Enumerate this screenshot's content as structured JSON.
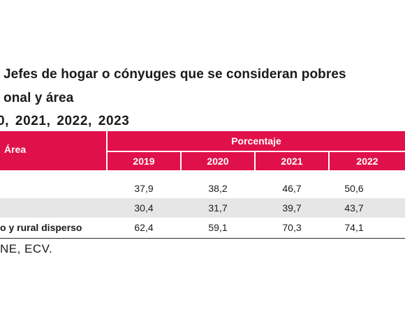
{
  "title": {
    "line1": "Jefes de hogar o cónyuges que se consideran pobres",
    "line2": "onal y área",
    "line3": "0, 2021, 2022, 2023"
  },
  "table": {
    "area_header": "Área",
    "group_header": "Porcentaje",
    "years": [
      "2019",
      "2020",
      "2021",
      "2022"
    ],
    "rows": [
      {
        "label": "",
        "values": [
          "37,9",
          "38,2",
          "46,7",
          "50,6"
        ]
      },
      {
        "label": "",
        "values": [
          "30,4",
          "31,7",
          "39,7",
          "43,7"
        ]
      },
      {
        "label": "o y rural disperso",
        "values": [
          "62,4",
          "59,1",
          "70,3",
          "74,1"
        ]
      }
    ]
  },
  "source": "NE, ECV.",
  "colors": {
    "header_bg": "#e0114a",
    "shaded_row": "#e6e6e6"
  }
}
